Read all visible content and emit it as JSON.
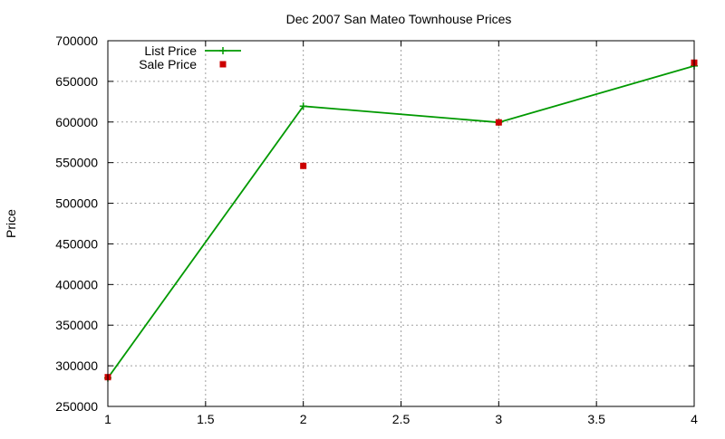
{
  "chart_data": {
    "type": "line",
    "title": "Dec 2007 San Mateo Townhouse Prices",
    "xlabel": "",
    "ylabel": "Price",
    "xlim": [
      1,
      4
    ],
    "ylim": [
      250000,
      700000
    ],
    "x_ticks": [
      1,
      1.5,
      2,
      2.5,
      3,
      3.5,
      4
    ],
    "x_tick_labels": [
      "1",
      "1.5",
      "2",
      "2.5",
      "3",
      "3.5",
      "4"
    ],
    "y_ticks": [
      250000,
      300000,
      350000,
      400000,
      450000,
      500000,
      550000,
      600000,
      650000,
      700000
    ],
    "y_tick_labels": [
      "250000",
      "300000",
      "350000",
      "400000",
      "450000",
      "500000",
      "550000",
      "600000",
      "650000",
      "700000"
    ],
    "grid": true,
    "legend_position": "top-left",
    "series": [
      {
        "name": "List Price",
        "style": "linespoints",
        "marker": "plus",
        "color": "#009900",
        "x": [
          1,
          2,
          3,
          4
        ],
        "y": [
          285000,
          619500,
          599500,
          669000
        ]
      },
      {
        "name": "Sale Price",
        "style": "points",
        "marker": "square",
        "color": "#cc0000",
        "x": [
          1,
          2,
          3,
          4
        ],
        "y": [
          286000,
          546000,
          599500,
          673000
        ]
      }
    ]
  }
}
